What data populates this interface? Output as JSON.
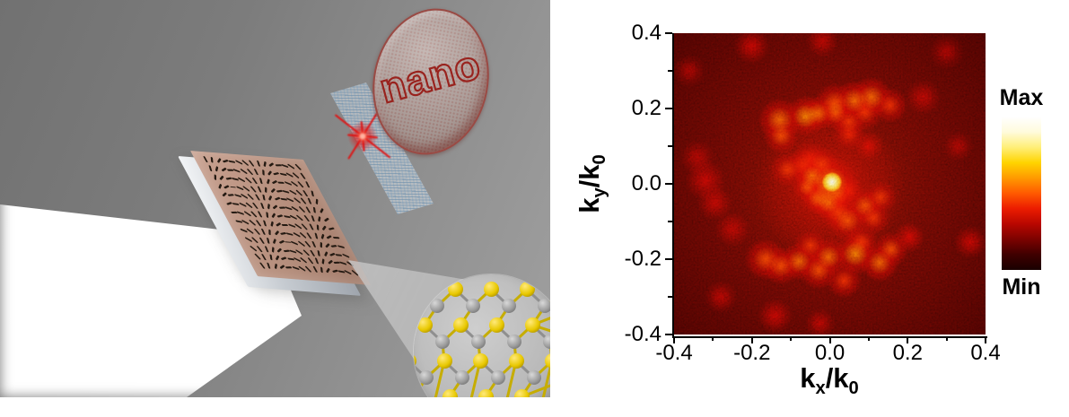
{
  "figure": {
    "left_panel": {
      "disk_label": "nano",
      "disk_face_color": "#b2a19c",
      "disk_rim_color": "#9a4a44",
      "disk_text_color": "#99231e",
      "chip_face_color": "#b58e7c",
      "antenna_color": "#241a12",
      "antenna_rows": 13,
      "antenna_cols": 15,
      "beam_color": "#ffffff",
      "spark_color": "#e01010",
      "sheet_color": "#9fc0d8",
      "lattice": {
        "background": "#bdbdbd",
        "sulfur_color": "#e8c800",
        "metal_color": "#9c9c9c",
        "bond_yellow": "#c6ad00",
        "bond_gray": "#8f8f8f",
        "rows": 4,
        "cols": 5
      }
    }
  },
  "chart_data": {
    "type": "heatmap",
    "xlabel": {
      "b1": "k",
      "s1": "x",
      "b2": "/k",
      "s2": "0"
    },
    "ylabel": {
      "b1": "k",
      "s1": "y",
      "b2": "/k",
      "s2": "0"
    },
    "xlim": [
      -0.4,
      0.4
    ],
    "ylim": [
      -0.4,
      0.4
    ],
    "xticks": [
      {
        "v": -0.4,
        "label": "-0.4"
      },
      {
        "v": -0.2,
        "label": "-0.2"
      },
      {
        "v": 0.0,
        "label": "0.0"
      },
      {
        "v": 0.2,
        "label": "0.2"
      },
      {
        "v": 0.4,
        "label": "0.4"
      }
    ],
    "yticks": [
      {
        "v": 0.4,
        "label": "0.4"
      },
      {
        "v": 0.2,
        "label": "0.2"
      },
      {
        "v": 0.0,
        "label": "0.0"
      },
      {
        "v": -0.2,
        "label": "-0.2"
      },
      {
        "v": -0.4,
        "label": "-0.4"
      }
    ],
    "minor_xticks": [
      -0.3,
      -0.1,
      0.1,
      0.3
    ],
    "minor_yticks": [
      -0.3,
      -0.1,
      0.1,
      0.3
    ],
    "grid": false,
    "background_center": "#7c1004",
    "background_edge": "#470301",
    "colorbar": {
      "max_label": "Max",
      "min_label": "Min",
      "gradient": [
        "#ffffff",
        "#fffbdc",
        "#ffef79",
        "#ffd400",
        "#ff9a00",
        "#ff5a00",
        "#ec1c00",
        "#b80700",
        "#7c0200",
        "#3f0000",
        "#190000"
      ]
    },
    "hotspots": [
      [
        0.005,
        0.005,
        0.016,
        1.0
      ],
      [
        0.002,
        0.0,
        0.045,
        0.6
      ],
      [
        0.0,
        -0.01,
        0.12,
        0.3
      ],
      [
        -0.045,
        0.02,
        0.028,
        0.55
      ],
      [
        -0.058,
        -0.008,
        0.024,
        0.5
      ],
      [
        -0.032,
        -0.038,
        0.026,
        0.52
      ],
      [
        -0.005,
        -0.048,
        0.028,
        0.55
      ],
      [
        0.022,
        -0.032,
        0.024,
        0.45
      ],
      [
        -0.02,
        0.052,
        0.028,
        0.45
      ],
      [
        0.045,
        -0.098,
        0.032,
        0.5
      ],
      [
        0.02,
        -0.075,
        0.028,
        0.45
      ],
      [
        -0.07,
        0.05,
        0.026,
        0.42
      ],
      [
        -0.13,
        0.17,
        0.034,
        0.55
      ],
      [
        -0.125,
        0.128,
        0.028,
        0.5
      ],
      [
        -0.062,
        0.18,
        0.032,
        0.6
      ],
      [
        -0.03,
        0.186,
        0.028,
        0.55
      ],
      [
        0.013,
        0.215,
        0.032,
        0.5
      ],
      [
        0.015,
        0.188,
        0.028,
        0.5
      ],
      [
        0.064,
        0.221,
        0.032,
        0.55
      ],
      [
        0.108,
        0.23,
        0.033,
        0.55
      ],
      [
        0.155,
        0.208,
        0.028,
        0.45
      ],
      [
        0.09,
        0.19,
        0.028,
        0.45
      ],
      [
        -0.108,
        0.038,
        0.028,
        0.45
      ],
      [
        -0.05,
        0.068,
        0.028,
        0.4
      ],
      [
        0.05,
        0.13,
        0.026,
        0.42
      ],
      [
        0.1,
        0.1,
        0.024,
        0.35
      ],
      [
        0.05,
        0.165,
        0.026,
        0.45
      ],
      [
        0.09,
        -0.058,
        0.028,
        0.5
      ],
      [
        0.13,
        -0.035,
        0.026,
        0.45
      ],
      [
        0.112,
        -0.09,
        0.026,
        0.45
      ],
      [
        0.048,
        -0.018,
        0.024,
        0.4
      ],
      [
        -0.165,
        -0.2,
        0.033,
        0.5
      ],
      [
        -0.126,
        -0.218,
        0.03,
        0.5
      ],
      [
        -0.08,
        -0.206,
        0.03,
        0.55
      ],
      [
        -0.029,
        -0.23,
        0.03,
        0.5
      ],
      [
        -0.003,
        -0.194,
        0.03,
        0.55
      ],
      [
        0.066,
        -0.185,
        0.033,
        0.6
      ],
      [
        0.036,
        -0.257,
        0.028,
        0.45
      ],
      [
        0.128,
        -0.21,
        0.03,
        0.55
      ],
      [
        0.156,
        -0.174,
        0.028,
        0.5
      ],
      [
        0.082,
        -0.154,
        0.026,
        0.45
      ],
      [
        -0.05,
        -0.165,
        0.026,
        0.45
      ],
      [
        0.204,
        -0.142,
        0.024,
        0.35
      ],
      [
        -0.32,
        0.01,
        0.032,
        0.3
      ],
      [
        -0.295,
        -0.05,
        0.028,
        0.28
      ],
      [
        -0.34,
        0.07,
        0.028,
        0.22
      ],
      [
        -0.25,
        -0.12,
        0.028,
        0.25
      ],
      [
        -0.2,
        0.365,
        0.028,
        0.3
      ],
      [
        -0.02,
        0.378,
        0.026,
        0.25
      ],
      [
        0.24,
        0.23,
        0.028,
        0.25
      ],
      [
        0.36,
        -0.155,
        0.026,
        0.3
      ],
      [
        -0.14,
        -0.35,
        0.028,
        0.3
      ],
      [
        -0.025,
        -0.37,
        0.024,
        0.25
      ],
      [
        0.3,
        0.35,
        0.028,
        0.2
      ],
      [
        -0.36,
        0.3,
        0.026,
        0.2
      ],
      [
        0.33,
        0.1,
        0.024,
        0.2
      ],
      [
        -0.28,
        -0.3,
        0.026,
        0.25
      ]
    ]
  }
}
